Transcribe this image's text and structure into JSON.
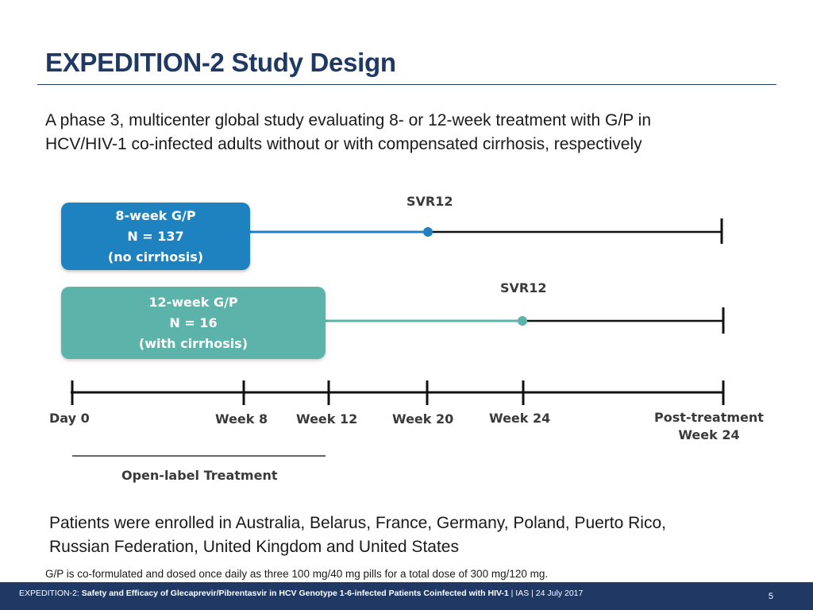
{
  "slide": {
    "title": "EXPEDITION-2 Study Design",
    "intro_lines": [
      "A phase 3, multicenter global study evaluating 8- or 12-week treatment with G/P in",
      "HCV/HIV-1 co-infected adults without or with compensated cirrhosis, respectively"
    ],
    "enrollment_lines": [
      "Patients were enrolled in Australia, Belarus, France, Germany, Poland, Puerto Rico,",
      "Russian Federation, United Kingdom and United States"
    ],
    "footnote": "G/P is co-formulated and dosed once daily as three 100 mg/40 mg pills for a total dose of 300 mg/120 mg."
  },
  "diagram": {
    "arms": [
      {
        "lines": [
          "8-week G/P",
          "N = 137",
          "(no cirrhosis)"
        ],
        "treatment_end": "Week 8",
        "svr_point": "Week 20",
        "svr_label": "SVR12",
        "color": "#1e82c0"
      },
      {
        "lines": [
          "12-week G/P",
          "N = 16",
          "(with cirrhosis)"
        ],
        "treatment_end": "Week 12",
        "svr_point": "Week 24",
        "svr_label": "SVR12",
        "color": "#5cb3a9"
      }
    ],
    "timeline": [
      {
        "lines": [
          "Day 0"
        ]
      },
      {
        "lines": [
          "Week 8"
        ]
      },
      {
        "lines": [
          "Week 12"
        ]
      },
      {
        "lines": [
          "Week 20"
        ]
      },
      {
        "lines": [
          "Week 24"
        ]
      },
      {
        "lines": [
          "Post-treatment",
          "Week 24"
        ]
      }
    ],
    "open_label": "Open-label Treatment"
  },
  "footer": {
    "prefix": "EXPEDITION-2: ",
    "bold": "Safety and Efficacy of Glecaprevir/Pibrentasvir in HCV Genotype 1-6-infected Patients Coinfected with HIV-1",
    "suffix": " | IAS | 24 July 2017",
    "page": "5"
  }
}
